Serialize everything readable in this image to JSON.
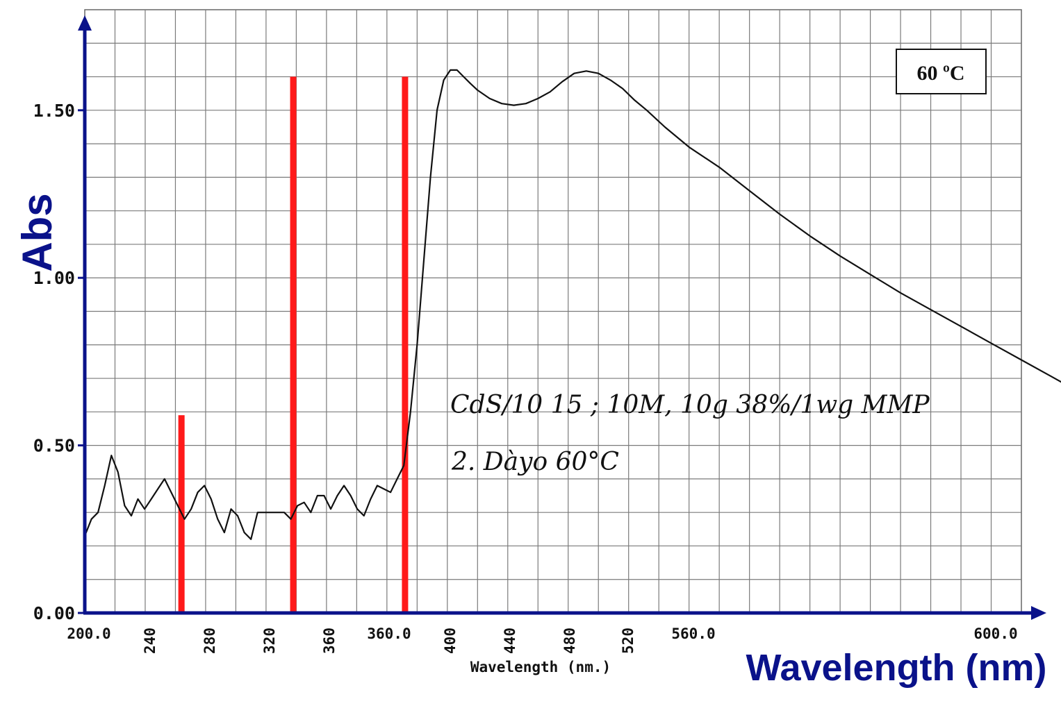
{
  "chart_data": {
    "type": "line",
    "ylabel": "Abs",
    "xlabel_main": "Wavelength (nm)",
    "xlabel_axis": "Wavelength (nm.)",
    "temperature_box": "60 ºC",
    "annotation_lines": [
      "CdS/10 15 ; 10M, 10g 38%/1wg MMP",
      "2. Dàyo 60°C"
    ],
    "ylim": [
      0,
      1.8
    ],
    "grid": true,
    "y_ticks": [
      {
        "value": 0.0,
        "label": "0.00"
      },
      {
        "value": 0.5,
        "label": "0.50"
      },
      {
        "value": 1.0,
        "label": "1.00"
      },
      {
        "value": 1.5,
        "label": "1.50"
      }
    ],
    "x_ticks": [
      {
        "label": "200.0",
        "rotated": false
      },
      {
        "label": "240",
        "rotated": true
      },
      {
        "label": "280",
        "rotated": true
      },
      {
        "label": "320",
        "rotated": true
      },
      {
        "label": "360",
        "rotated": true
      },
      {
        "label": "360.0",
        "rotated": false
      },
      {
        "label": "400",
        "rotated": true
      },
      {
        "label": "440",
        "rotated": true
      },
      {
        "label": "480",
        "rotated": true
      },
      {
        "label": "520",
        "rotated": true
      },
      {
        "label": "560.0",
        "rotated": false
      },
      {
        "label": "600.0",
        "rotated": false
      }
    ],
    "series": [
      {
        "color": "#111111",
        "points": [
          [
            0.0,
            0.23
          ],
          [
            0.22,
            0.28
          ],
          [
            0.44,
            0.3
          ],
          [
            0.66,
            0.38
          ],
          [
            0.88,
            0.47
          ],
          [
            1.1,
            0.42
          ],
          [
            1.32,
            0.32
          ],
          [
            1.54,
            0.29
          ],
          [
            1.76,
            0.34
          ],
          [
            1.98,
            0.31
          ],
          [
            2.2,
            0.34
          ],
          [
            2.42,
            0.37
          ],
          [
            2.64,
            0.4
          ],
          [
            2.86,
            0.36
          ],
          [
            3.08,
            0.32
          ],
          [
            3.3,
            0.28
          ],
          [
            3.52,
            0.31
          ],
          [
            3.74,
            0.36
          ],
          [
            3.96,
            0.38
          ],
          [
            4.18,
            0.34
          ],
          [
            4.4,
            0.28
          ],
          [
            4.62,
            0.24
          ],
          [
            4.84,
            0.31
          ],
          [
            5.06,
            0.29
          ],
          [
            5.28,
            0.24
          ],
          [
            5.5,
            0.22
          ],
          [
            5.72,
            0.3
          ],
          [
            6.6,
            0.3
          ],
          [
            6.82,
            0.28
          ],
          [
            7.04,
            0.32
          ],
          [
            7.26,
            0.33
          ],
          [
            7.48,
            0.3
          ],
          [
            7.7,
            0.35
          ],
          [
            7.92,
            0.35
          ],
          [
            8.14,
            0.31
          ],
          [
            8.36,
            0.35
          ],
          [
            8.58,
            0.38
          ],
          [
            8.8,
            0.35
          ],
          [
            9.02,
            0.31
          ],
          [
            9.24,
            0.29
          ],
          [
            9.46,
            0.34
          ],
          [
            9.68,
            0.38
          ],
          [
            9.9,
            0.37
          ],
          [
            10.12,
            0.36
          ],
          [
            10.34,
            0.4
          ],
          [
            10.56,
            0.44
          ],
          [
            10.78,
            0.6
          ],
          [
            11.0,
            0.8
          ],
          [
            11.22,
            1.05
          ],
          [
            11.44,
            1.3
          ],
          [
            11.66,
            1.5
          ],
          [
            11.88,
            1.59
          ],
          [
            12.1,
            1.62
          ],
          [
            12.32,
            1.62
          ],
          [
            12.54,
            1.6
          ],
          [
            12.76,
            1.58
          ],
          [
            13.0,
            1.56
          ],
          [
            13.4,
            1.535
          ],
          [
            13.8,
            1.52
          ],
          [
            14.2,
            1.515
          ],
          [
            14.6,
            1.52
          ],
          [
            15.0,
            1.535
          ],
          [
            15.4,
            1.555
          ],
          [
            15.8,
            1.585
          ],
          [
            16.2,
            1.61
          ],
          [
            16.6,
            1.617
          ],
          [
            17.0,
            1.61
          ],
          [
            17.4,
            1.59
          ],
          [
            17.8,
            1.565
          ],
          [
            18.2,
            1.53
          ],
          [
            18.6,
            1.5
          ],
          [
            19.2,
            1.45
          ],
          [
            20.0,
            1.39
          ],
          [
            21.0,
            1.33
          ],
          [
            22.0,
            1.26
          ],
          [
            23.0,
            1.19
          ],
          [
            24.0,
            1.125
          ],
          [
            25.0,
            1.065
          ],
          [
            26.0,
            1.01
          ],
          [
            27.0,
            0.955
          ],
          [
            28.0,
            0.905
          ],
          [
            29.0,
            0.855
          ],
          [
            30.0,
            0.805
          ],
          [
            31.0,
            0.755
          ],
          [
            32.0,
            0.705
          ],
          [
            33.0,
            0.655
          ],
          [
            34.0,
            0.605
          ],
          [
            35.0,
            0.555
          ],
          [
            36.0,
            0.505
          ],
          [
            37.0,
            0.455
          ],
          [
            38.0,
            0.405
          ],
          [
            39.0,
            0.365
          ],
          [
            40.0,
            0.325
          ],
          [
            41.0,
            0.295
          ],
          [
            42.0,
            0.27
          ],
          [
            43.0,
            0.25
          ],
          [
            44.0,
            0.232
          ],
          [
            45.0,
            0.215
          ],
          [
            46.5,
            0.19
          ]
        ]
      }
    ],
    "markers": [
      {
        "x": 3.2,
        "value": 0.59,
        "color": "#ff1a1a"
      },
      {
        "x": 6.9,
        "value": 1.6,
        "color": "#ff1a1a"
      },
      {
        "x": 10.6,
        "value": 1.6,
        "color": "#ff1a1a"
      }
    ],
    "x_grid_divisions": 31,
    "y_grid_divisions": 18
  }
}
